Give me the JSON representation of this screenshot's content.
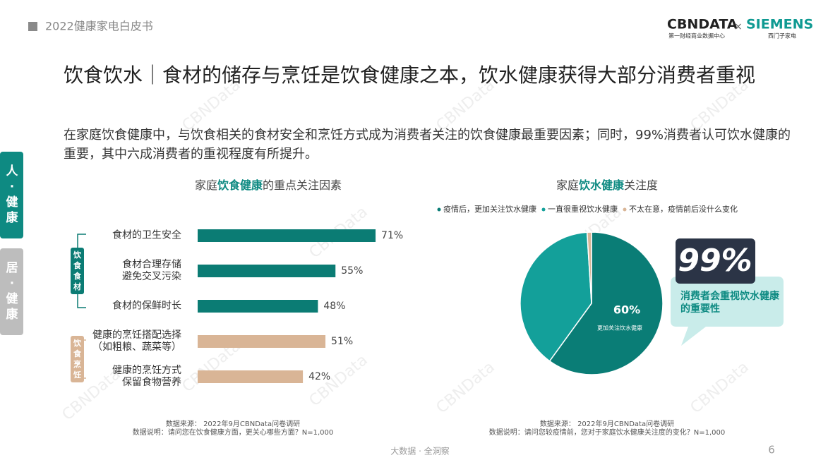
{
  "header": {
    "report": "2022健康家电白皮书",
    "logo_main": "CBNDATA",
    "logo_main_sub": "第一财经商业数据中心",
    "logo_cross": "×",
    "logo_partner": "SIEMENS",
    "logo_partner_sub": "西门子家电"
  },
  "sidebar": [
    "人·健康",
    "居·健康"
  ],
  "title": "饮食饮水｜食材的储存与烹饪是饮食健康之本，饮水健康获得大部分消费者重视",
  "subtitle": "在家庭饮食健康中，与饮食相关的食材安全和烹饪方式成为消费者关注的饮食健康最重要因素；同时，99%消费者认可饮水健康的重要，其中六成消费者的重视程度有所提升。",
  "watermark": "CBNData",
  "chart_data": [
    {
      "type": "bar",
      "title": [
        "家庭",
        "饮食健康",
        "的重点关注因素"
      ],
      "categories": [
        "食材的卫生安全",
        "食材合理存储\n避免交叉污染",
        "食材的保鲜时长",
        "健康的烹饪搭配选择\n（如粗粮、蔬菜等）",
        "健康的烹饪方式\n保留食物营养"
      ],
      "series": [
        {
          "name": "饮食食材",
          "color": "#0b7c74",
          "values": [
            71,
            55,
            48,
            null,
            null
          ],
          "value_labels": [
            "71%",
            "55%",
            "48%",
            null,
            null
          ]
        },
        {
          "name": "饮食烹饪",
          "color": "#d9b596",
          "values": [
            null,
            null,
            null,
            51,
            42
          ],
          "value_labels": [
            null,
            null,
            null,
            "51%",
            "42%"
          ]
        }
      ],
      "source": [
        "数据来源： 2022年9月CBNData问卷调研",
        "数据说明：请问您在饮食健康方面，更关心哪些方面？N=1,000"
      ]
    },
    {
      "type": "pie",
      "title": [
        "家庭",
        "饮水健康",
        "关注度"
      ],
      "categories": [
        "疫情后，更加关注饮水健康",
        "一直很重视饮水健康",
        "不太在意，疫情前后没什么变化"
      ],
      "values": [
        60,
        39,
        1
      ],
      "value_labels": [
        "60%",
        null,
        null
      ],
      "colors": [
        "#0a7d76",
        "#13a09a",
        "#d9b596"
      ],
      "slice_note": "更加关注饮水健康",
      "callout": {
        "big": "99%",
        "text": "消费者会重视饮水健康的重要性"
      },
      "source": [
        "数据来源： 2022年9月CBNData问卷调研",
        "数据说明：请问您较疫情前，您对于家庭饮水健康关注度的变化？N=1,000"
      ]
    }
  ],
  "footer": {
    "tagline": "大数据 · 全洞察",
    "page": "6"
  }
}
